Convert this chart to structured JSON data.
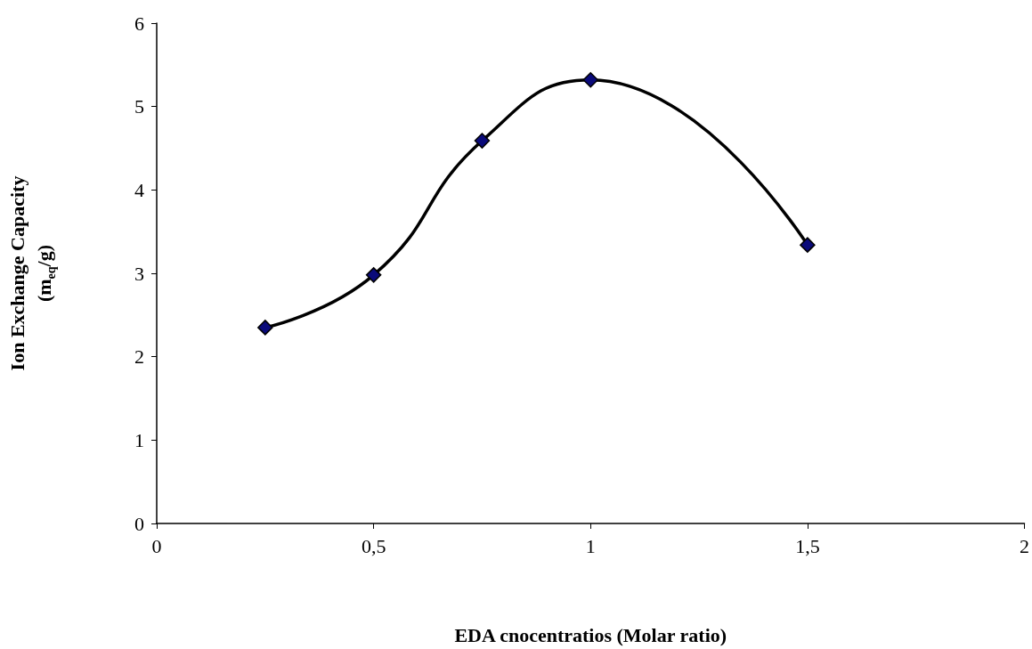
{
  "chart_data": {
    "type": "line",
    "xlabel": "EDA cnocentratios (Molar ratio)",
    "ylabel": "Ion Exchange Capacity\n(m$_{eq}$/g)",
    "x": [
      0.25,
      0.5,
      0.75,
      1,
      1.5
    ],
    "series": [
      {
        "color": "#000000",
        "values": [
          2.35,
          2.98,
          4.59,
          5.32,
          3.34
        ]
      }
    ],
    "xlim": [
      0,
      2
    ],
    "xticks": [
      0,
      {
        "value": 0.5,
        "label": "0,5"
      },
      1,
      {
        "value": 1.5,
        "label": "1,5"
      },
      2
    ],
    "ylim": [
      0,
      6
    ],
    "yticks": [
      0,
      1,
      2,
      3,
      4,
      5,
      6
    ],
    "marker": "diamond",
    "line_style": "solid"
  }
}
